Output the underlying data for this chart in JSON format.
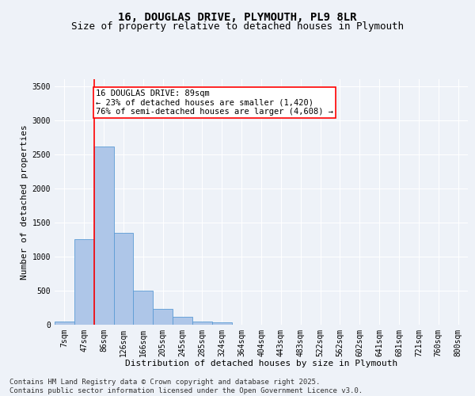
{
  "title_line1": "16, DOUGLAS DRIVE, PLYMOUTH, PL9 8LR",
  "title_line2": "Size of property relative to detached houses in Plymouth",
  "xlabel": "Distribution of detached houses by size in Plymouth",
  "ylabel": "Number of detached properties",
  "categories": [
    "7sqm",
    "47sqm",
    "86sqm",
    "126sqm",
    "166sqm",
    "205sqm",
    "245sqm",
    "285sqm",
    "324sqm",
    "364sqm",
    "404sqm",
    "443sqm",
    "483sqm",
    "522sqm",
    "562sqm",
    "602sqm",
    "641sqm",
    "681sqm",
    "721sqm",
    "760sqm",
    "800sqm"
  ],
  "values": [
    50,
    1250,
    2610,
    1350,
    505,
    230,
    115,
    50,
    30,
    5,
    2,
    0,
    0,
    0,
    0,
    0,
    0,
    0,
    0,
    0,
    0
  ],
  "bar_color": "#aec6e8",
  "bar_edge_color": "#5b9bd5",
  "vline_x_index": 2,
  "vline_color": "red",
  "annotation_line1": "16 DOUGLAS DRIVE: 89sqm",
  "annotation_line2": "← 23% of detached houses are smaller (1,420)",
  "annotation_line3": "76% of semi-detached houses are larger (4,608) →",
  "annotation_box_color": "white",
  "annotation_box_edge": "red",
  "ylim": [
    0,
    3600
  ],
  "yticks": [
    0,
    500,
    1000,
    1500,
    2000,
    2500,
    3000,
    3500
  ],
  "background_color": "#eef2f8",
  "grid_color": "white",
  "footer_line1": "Contains HM Land Registry data © Crown copyright and database right 2025.",
  "footer_line2": "Contains public sector information licensed under the Open Government Licence v3.0.",
  "title_fontsize": 10,
  "subtitle_fontsize": 9,
  "axis_label_fontsize": 8,
  "tick_fontsize": 7,
  "annotation_fontsize": 7.5,
  "footer_fontsize": 6.5
}
